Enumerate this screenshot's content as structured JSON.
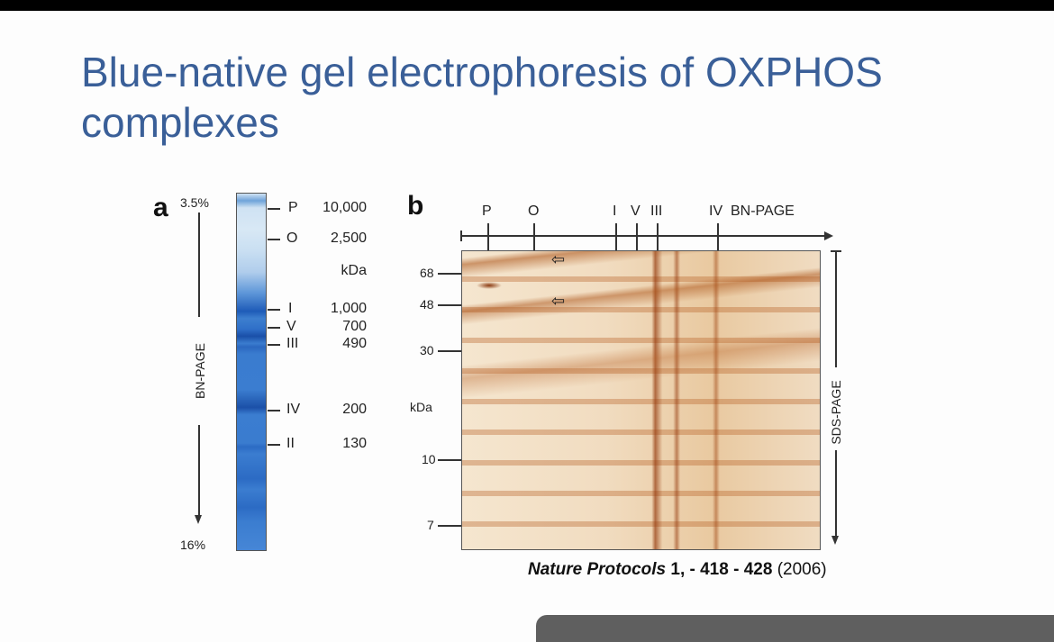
{
  "slide": {
    "title": "Blue-native gel electrophoresis of OXPHOS complexes"
  },
  "panel_a": {
    "letter": "a",
    "top_pct": "3.5%",
    "bottom_pct": "16%",
    "axis_label": "BN-PAGE",
    "unit": "kDa",
    "bands": [
      {
        "name": "P",
        "kda": "10,000"
      },
      {
        "name": "O",
        "kda": "2,500"
      },
      {
        "name": "I",
        "kda": "1,000"
      },
      {
        "name": "V",
        "kda": "700"
      },
      {
        "name": "III",
        "kda": "490"
      },
      {
        "name": "IV",
        "kda": "200"
      },
      {
        "name": "II",
        "kda": "130"
      }
    ]
  },
  "panel_b": {
    "letter": "b",
    "top_labels": [
      "P",
      "O",
      "I",
      "V",
      "III",
      "IV"
    ],
    "top_axis_label": "BN-PAGE",
    "right_axis_label": "SDS-PAGE",
    "unit": "kDa",
    "y_labels": [
      "68",
      "48",
      "30",
      "10",
      "7"
    ]
  },
  "citation": {
    "journal": "Nature Protocols",
    "volume": "1",
    "pages": ", - 418 - 428",
    "year": "(2006)"
  }
}
